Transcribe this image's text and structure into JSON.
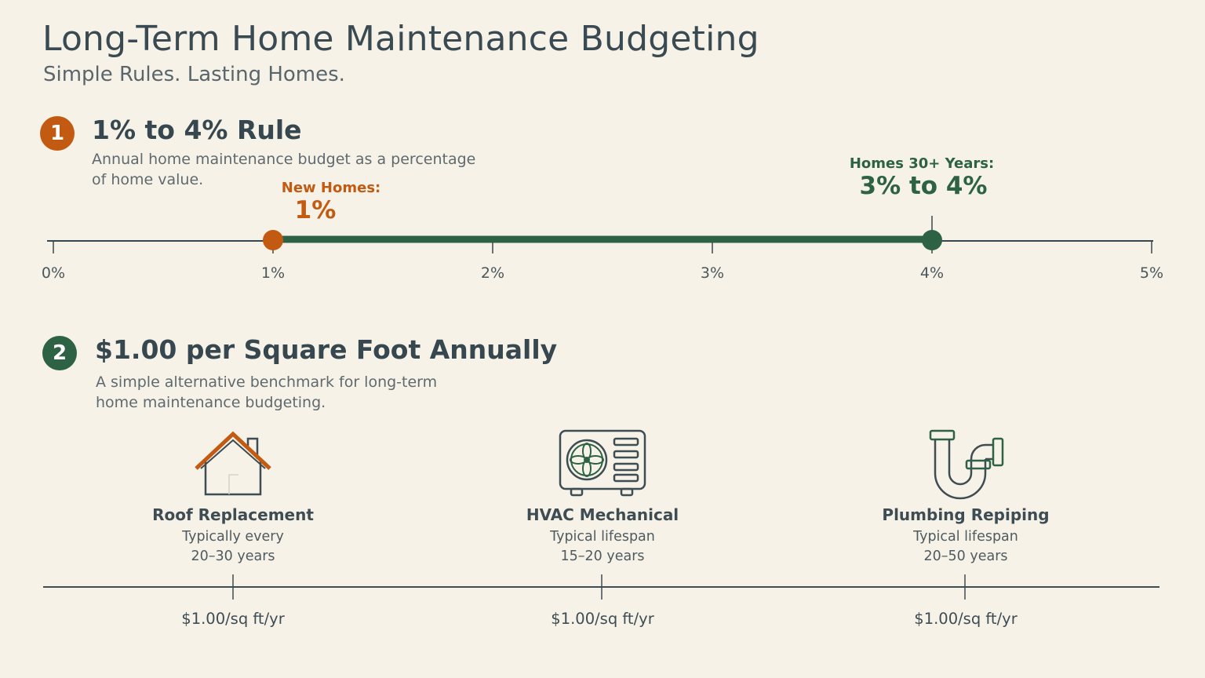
{
  "header": {
    "title": "Long-Term Home Maintenance Budgeting",
    "subtitle": "Simple Rules. Lasting Homes."
  },
  "colors": {
    "orange": "#c25a12",
    "green": "#2e6244",
    "dark": "#36474f",
    "background": "#f6f2e7"
  },
  "section1": {
    "number": "1",
    "title": "1% to 4% Rule",
    "description_lines": [
      "Annual home maintenance budget as a percentage",
      "of home value."
    ],
    "scale": {
      "unit": "%",
      "min": 0,
      "max": 5,
      "ticks": [
        "0%",
        "1%",
        "2%",
        "3%",
        "4%",
        "5%"
      ],
      "range_start": 1,
      "range_end": 4
    },
    "callouts": {
      "new_label": "New Homes:",
      "new_value": "1%",
      "old_label": "Homes 30+ Years:",
      "old_value": "3% to 4%"
    }
  },
  "section2": {
    "number": "2",
    "title": "$1.00 per Square Foot Annually",
    "description_lines": [
      "A simple alternative benchmark for long-term",
      "home maintenance budgeting."
    ],
    "items": [
      {
        "icon": "house-icon",
        "title": "Roof Replacement",
        "line1": "Typically every",
        "line2": "20–30 years",
        "rate": "$1.00/sq ft/yr"
      },
      {
        "icon": "hvac-unit-icon",
        "title": "HVAC Mechanical",
        "line1": "Typical lifespan",
        "line2": "15–20 years",
        "rate": "$1.00/sq ft/yr"
      },
      {
        "icon": "pipe-icon",
        "title": "Plumbing Repiping",
        "line1": "Typical lifespan",
        "line2": "20–50 years",
        "rate": "$1.00/sq ft/yr"
      }
    ]
  }
}
